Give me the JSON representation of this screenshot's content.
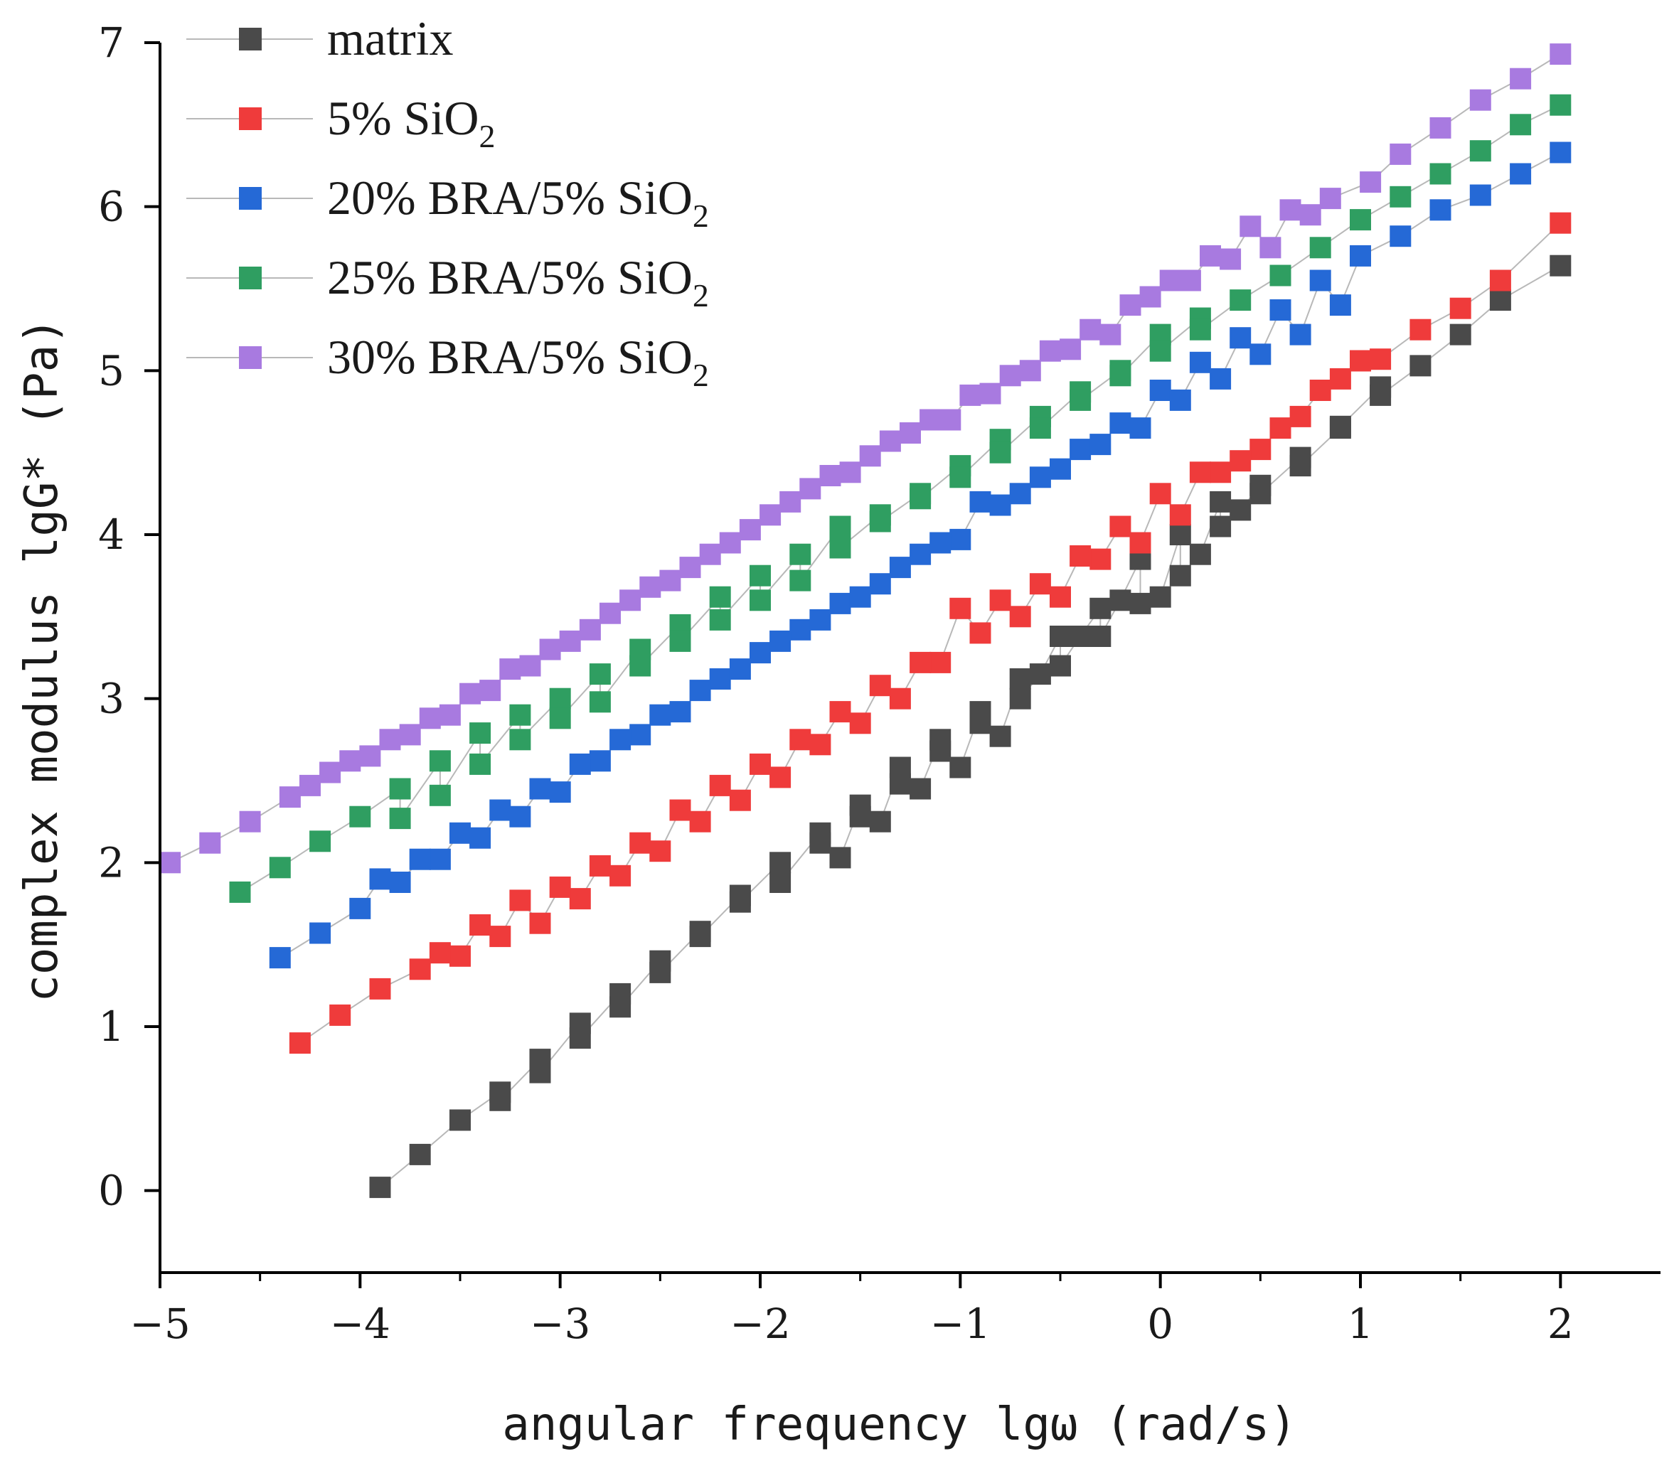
{
  "chart_data": {
    "type": "scatter",
    "title": "",
    "xlabel": "angular frequency lgω (rad/s)",
    "ylabel": "complex modulus lgG* (Pa)",
    "xlim": [
      -5,
      2.5
    ],
    "ylim": [
      -0.5,
      7
    ],
    "xticks": [
      -5,
      -4,
      -3,
      -2,
      -1,
      0,
      1,
      2
    ],
    "xtick_labels": [
      "−5",
      "−4",
      "−3",
      "−2",
      "−1",
      "0",
      "1",
      "2"
    ],
    "yticks": [
      0,
      1,
      2,
      3,
      4,
      5,
      6,
      7
    ],
    "ytick_labels": [
      "0",
      "1",
      "2",
      "3",
      "4",
      "5",
      "6",
      "7"
    ],
    "grid": false,
    "legend_position": "top-left",
    "series": [
      {
        "name": "matrix",
        "label_main": "matrix",
        "label_sub": "",
        "color": "#4a4a4a",
        "x": [
          -3.9,
          -3.7,
          -3.5,
          -3.3,
          -3.1,
          -2.9,
          -2.7,
          -2.5,
          -2.3,
          -2.1,
          -1.9,
          -1.7,
          -1.5,
          -1.3,
          -1.1,
          -0.9,
          -0.7,
          -0.5,
          -0.3,
          -0.1,
          0.1,
          0.3,
          0.5,
          0.7,
          0.9,
          1.1,
          1.3,
          1.5,
          1.7,
          2.0,
          -3.3,
          -3.1,
          -2.9,
          -2.7,
          -2.5,
          -2.3,
          -2.1,
          -1.9,
          -1.7,
          -1.5,
          -1.3,
          -1.1,
          -0.9,
          -0.7,
          -0.5,
          -0.3,
          -0.1,
          0.1,
          0.3,
          0.5,
          0.7,
          0.9,
          1.1,
          -1.6,
          -1.4,
          -1.2,
          -1.0,
          -0.8,
          -0.6,
          -0.4,
          -0.2,
          0.0,
          0.2,
          0.4
        ],
        "y": [
          0.02,
          0.22,
          0.43,
          0.6,
          0.8,
          1.02,
          1.2,
          1.4,
          1.58,
          1.8,
          2.0,
          2.18,
          2.35,
          2.58,
          2.75,
          2.92,
          3.12,
          3.38,
          3.55,
          3.85,
          4.0,
          4.2,
          4.3,
          4.47,
          4.65,
          4.9,
          5.03,
          5.22,
          5.43,
          5.64,
          0.55,
          0.72,
          0.93,
          1.12,
          1.33,
          1.55,
          1.76,
          1.88,
          2.12,
          2.28,
          2.48,
          2.68,
          2.85,
          3.0,
          3.2,
          3.38,
          3.58,
          3.75,
          4.05,
          4.25,
          4.42,
          4.66,
          4.85,
          2.03,
          2.25,
          2.45,
          2.58,
          2.77,
          3.15,
          3.38,
          3.6,
          3.62,
          3.88,
          4.15
        ]
      },
      {
        "name": "5% SiO2",
        "label_main": "5% SiO",
        "label_sub": "2",
        "color": "#ef3b3b",
        "x": [
          -4.3,
          -4.1,
          -3.9,
          -3.7,
          -3.5,
          -3.3,
          -3.1,
          -2.9,
          -2.7,
          -2.5,
          -2.3,
          -2.1,
          -1.9,
          -1.7,
          -1.5,
          -1.3,
          -1.1,
          -0.9,
          -0.7,
          -0.5,
          -0.3,
          -0.1,
          0.1,
          0.3,
          0.5,
          0.7,
          0.9,
          1.1,
          1.3,
          1.5,
          1.7,
          2.0,
          -3.6,
          -3.4,
          -3.2,
          -3.0,
          -2.8,
          -2.6,
          -2.4,
          -2.2,
          -2.0,
          -1.8,
          -1.6,
          -1.4,
          -1.2,
          -1.0,
          -0.8,
          -0.6,
          -0.4,
          -0.2,
          0.0,
          0.2,
          0.4,
          0.6,
          0.8,
          1.0
        ],
        "y": [
          0.9,
          1.07,
          1.23,
          1.35,
          1.43,
          1.55,
          1.63,
          1.78,
          1.92,
          2.07,
          2.25,
          2.38,
          2.52,
          2.72,
          2.85,
          3.0,
          3.22,
          3.4,
          3.5,
          3.62,
          3.85,
          3.95,
          4.12,
          4.38,
          4.52,
          4.72,
          4.95,
          5.07,
          5.25,
          5.38,
          5.55,
          5.9,
          1.45,
          1.62,
          1.77,
          1.85,
          1.98,
          2.12,
          2.32,
          2.47,
          2.6,
          2.75,
          2.92,
          3.08,
          3.22,
          3.55,
          3.6,
          3.7,
          3.87,
          4.05,
          4.25,
          4.38,
          4.45,
          4.65,
          4.88,
          5.06
        ]
      },
      {
        "name": "20% BRA/5% SiO2",
        "label_main": "20% BRA/5% SiO",
        "label_sub": "2",
        "color": "#2569d6",
        "x": [
          -4.4,
          -4.2,
          -4.0,
          -3.8,
          -3.6,
          -3.4,
          -3.2,
          -3.0,
          -2.8,
          -2.6,
          -2.4,
          -2.2,
          -2.0,
          -1.8,
          -1.6,
          -1.4,
          -1.2,
          -1.0,
          -0.8,
          -0.6,
          -0.4,
          -0.2,
          0.0,
          0.2,
          0.4,
          0.6,
          0.8,
          1.0,
          1.2,
          1.4,
          1.6,
          1.8,
          2.0,
          -3.9,
          -3.7,
          -3.5,
          -3.3,
          -3.1,
          -2.9,
          -2.7,
          -2.5,
          -2.3,
          -2.1,
          -1.9,
          -1.7,
          -1.5,
          -1.3,
          -1.1,
          -0.9,
          -0.7,
          -0.5,
          -0.3,
          -0.1,
          0.1,
          0.3,
          0.5,
          0.7,
          0.9
        ],
        "y": [
          1.42,
          1.57,
          1.72,
          1.88,
          2.02,
          2.15,
          2.28,
          2.43,
          2.62,
          2.78,
          2.92,
          3.12,
          3.28,
          3.42,
          3.58,
          3.7,
          3.88,
          3.97,
          4.18,
          4.35,
          4.52,
          4.68,
          4.88,
          5.05,
          5.2,
          5.37,
          5.55,
          5.7,
          5.82,
          5.98,
          6.07,
          6.2,
          6.33,
          1.9,
          2.02,
          2.18,
          2.32,
          2.45,
          2.6,
          2.75,
          2.9,
          3.05,
          3.18,
          3.35,
          3.48,
          3.62,
          3.8,
          3.95,
          4.2,
          4.25,
          4.4,
          4.55,
          4.65,
          4.82,
          4.95,
          5.1,
          5.22,
          5.4
        ]
      },
      {
        "name": "25% BRA/5% SiO2",
        "label_main": "25% BRA/5% SiO",
        "label_sub": "2",
        "color": "#2f9e61",
        "x": [
          -4.6,
          -4.4,
          -4.2,
          -4.0,
          -3.8,
          -3.6,
          -3.4,
          -3.2,
          -3.0,
          -2.8,
          -2.6,
          -2.4,
          -2.2,
          -2.0,
          -1.8,
          -1.6,
          -1.4,
          -1.2,
          -1.0,
          -0.8,
          -0.6,
          -0.4,
          -0.2,
          0.0,
          0.2,
          0.4,
          0.6,
          0.8,
          1.0,
          1.2,
          1.4,
          1.6,
          1.8,
          2.0,
          -3.8,
          -3.6,
          -3.4,
          -3.2,
          -3.0,
          -2.8,
          -2.6,
          -2.4,
          -2.2,
          -2.0,
          -1.8,
          -1.6,
          -1.4,
          -1.2,
          -1.0,
          -0.8,
          -0.6,
          -0.4,
          -0.2,
          0.0,
          0.2
        ],
        "y": [
          1.82,
          1.97,
          2.13,
          2.28,
          2.45,
          2.62,
          2.79,
          2.9,
          3.0,
          3.15,
          3.3,
          3.45,
          3.62,
          3.75,
          3.88,
          4.05,
          4.12,
          4.25,
          4.42,
          4.58,
          4.72,
          4.87,
          5.0,
          5.22,
          5.32,
          5.43,
          5.58,
          5.75,
          5.92,
          6.06,
          6.2,
          6.34,
          6.5,
          6.62,
          2.27,
          2.41,
          2.6,
          2.75,
          2.88,
          2.98,
          3.2,
          3.35,
          3.48,
          3.6,
          3.72,
          3.92,
          4.08,
          4.22,
          4.35,
          4.5,
          4.65,
          4.82,
          4.97,
          5.12,
          5.25
        ]
      },
      {
        "name": "30% BRA/5% SiO2",
        "label_main": "30% BRA/5% SiO",
        "label_sub": "2",
        "color": "#a87ae0",
        "x": [
          -4.95,
          -4.75,
          -4.55,
          -4.35,
          -4.15,
          -3.95,
          -3.75,
          -3.55,
          -3.35,
          -3.15,
          -2.95,
          -2.75,
          -2.55,
          -2.35,
          -2.15,
          -1.95,
          -1.75,
          -1.55,
          -1.35,
          -1.15,
          -0.95,
          -0.75,
          -0.55,
          -0.35,
          -0.15,
          0.05,
          0.25,
          0.45,
          0.65,
          0.85,
          1.05,
          1.2,
          1.4,
          1.6,
          1.8,
          2.0,
          -4.25,
          -4.05,
          -3.85,
          -3.65,
          -3.45,
          -3.25,
          -3.05,
          -2.85,
          -2.65,
          -2.45,
          -2.25,
          -2.05,
          -1.85,
          -1.65,
          -1.45,
          -1.25,
          -1.05,
          -0.85,
          -0.65,
          -0.45,
          -0.25,
          -0.05,
          0.15,
          0.35,
          0.55,
          0.75
        ],
        "y": [
          2.0,
          2.12,
          2.25,
          2.4,
          2.55,
          2.65,
          2.78,
          2.9,
          3.05,
          3.2,
          3.35,
          3.52,
          3.68,
          3.8,
          3.95,
          4.12,
          4.28,
          4.38,
          4.57,
          4.7,
          4.85,
          4.97,
          5.12,
          5.25,
          5.4,
          5.55,
          5.7,
          5.88,
          5.98,
          6.05,
          6.15,
          6.32,
          6.48,
          6.65,
          6.78,
          6.93,
          2.47,
          2.62,
          2.75,
          2.88,
          3.03,
          3.18,
          3.3,
          3.42,
          3.6,
          3.72,
          3.88,
          4.03,
          4.2,
          4.36,
          4.48,
          4.62,
          4.7,
          4.86,
          5.0,
          5.13,
          5.22,
          5.45,
          5.55,
          5.68,
          5.75,
          5.95
        ]
      }
    ]
  }
}
